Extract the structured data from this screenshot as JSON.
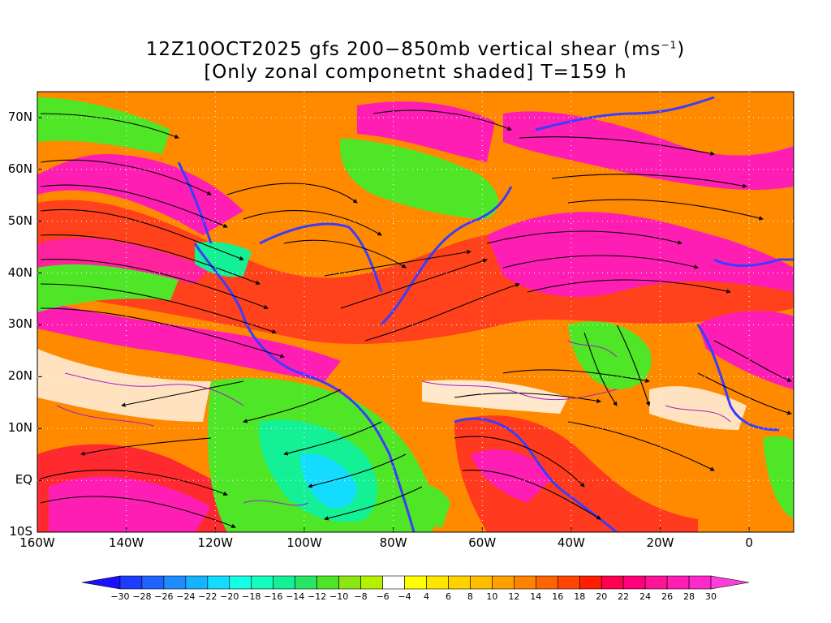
{
  "title": {
    "line1_prefix": "12Z10OCT2025 gfs 200−850mb vertical shear (ms",
    "line1_sup": "−1",
    "line1_suffix": ")",
    "line2": "[Only zonal componetnt shaded] T=159 h"
  },
  "map": {
    "lon_range": [
      -160,
      10
    ],
    "lat_range": [
      -10,
      75
    ],
    "y_ticks": [
      {
        "lat": 70,
        "label": "70N"
      },
      {
        "lat": 60,
        "label": "60N"
      },
      {
        "lat": 50,
        "label": "50N"
      },
      {
        "lat": 40,
        "label": "40N"
      },
      {
        "lat": 30,
        "label": "30N"
      },
      {
        "lat": 20,
        "label": "20N"
      },
      {
        "lat": 10,
        "label": "10N"
      },
      {
        "lat": 0,
        "label": "EQ"
      },
      {
        "lat": -10,
        "label": "10S"
      }
    ],
    "x_ticks": [
      {
        "lon": -160,
        "label": "160W"
      },
      {
        "lon": -140,
        "label": "140W"
      },
      {
        "lon": -120,
        "label": "120W"
      },
      {
        "lon": -100,
        "label": "100W"
      },
      {
        "lon": -80,
        "label": "80W"
      },
      {
        "lon": -60,
        "label": "60W"
      },
      {
        "lon": -40,
        "label": "40W"
      },
      {
        "lon": -20,
        "label": "20W"
      },
      {
        "lon": 0,
        "label": "0"
      }
    ]
  },
  "colorbar": {
    "labels": [
      "−30",
      "−28",
      "−26",
      "−24",
      "−22",
      "−20",
      "−18",
      "−16",
      "−14",
      "−12",
      "−10",
      "−8",
      "−6",
      "−4",
      "4",
      "6",
      "8",
      "10",
      "12",
      "14",
      "16",
      "18",
      "20",
      "22",
      "24",
      "26",
      "28",
      "30"
    ],
    "colors": [
      "#1a10ff",
      "#1e3cff",
      "#1e64ff",
      "#1e8cff",
      "#14b4ff",
      "#14dcff",
      "#14ffe6",
      "#14ffbe",
      "#14f096",
      "#28e664",
      "#50e628",
      "#8ce614",
      "#b4f000",
      "#ffffff",
      "#ffff00",
      "#ffe600",
      "#ffd200",
      "#ffbe00",
      "#ffa000",
      "#ff8200",
      "#ff6400",
      "#ff4600",
      "#ff1e00",
      "#ff0050",
      "#ff0078",
      "#ff1496",
      "#ff1eb4",
      "#ff28c8",
      "#ff3cdc"
    ]
  }
}
